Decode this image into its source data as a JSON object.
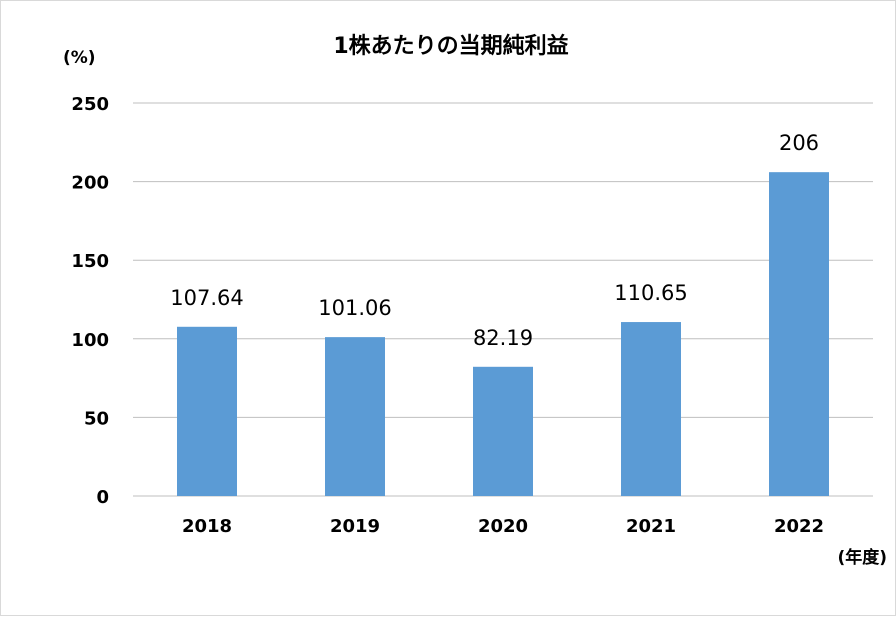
{
  "chart_data": {
    "type": "bar",
    "title": "1株あたりの当期純利益",
    "y_unit": "(%)",
    "x_unit": "(年度)",
    "categories": [
      "2018",
      "2019",
      "2020",
      "2021",
      "2022"
    ],
    "values": [
      107.64,
      101.06,
      82.19,
      110.65,
      206
    ],
    "data_labels": [
      "107.64",
      "101.06",
      "82.19",
      "110.65",
      "206"
    ],
    "ylim": [
      0,
      250
    ],
    "yticks": [
      0,
      50,
      100,
      150,
      200,
      250
    ],
    "grid": true,
    "bar_color": "#5b9bd5",
    "grid_color": "#bfbfbf"
  }
}
